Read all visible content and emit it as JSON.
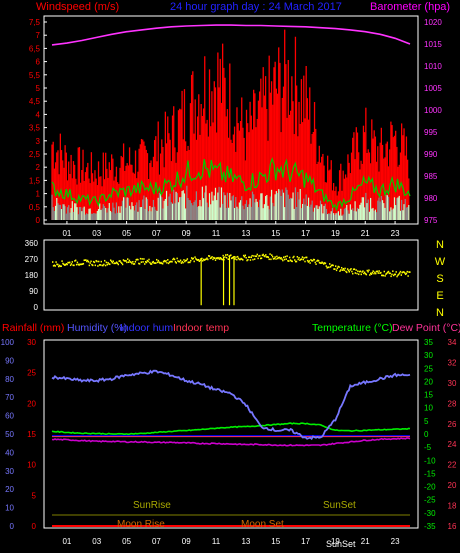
{
  "colors": {
    "bg": "#000000",
    "frame": "#ffffff",
    "grid": "#333333",
    "wind": "#ff0000",
    "gust": "#00cc00",
    "light": "#ccffcc",
    "baro": "#ff33ff",
    "dir": "#ffff00",
    "rain": "#ff0000",
    "hum": "#7777ff",
    "inhum": "#0000ff",
    "intemp": "#ff3355",
    "temp": "#00ee00",
    "dew": "#cc00cc",
    "sunline": "#666600",
    "sunText": "#aaaa00",
    "moonText": "#cc6600",
    "titleBlue": "#2222ff",
    "windTitle": "#ff0000",
    "baroTitle": "#ff00ff",
    "tempTitle": "#00ff00",
    "dewTitle": "#ff3399"
  },
  "top": {
    "title_left": "Windspeed (m/s)",
    "title_center": "24 hour graph day : 24 March 2017",
    "title_right": "Barometer (hpa)"
  },
  "bottom": {
    "title_rain": "Rainfall (mm)",
    "title_hum": "Humidity (%)",
    "title_inhum": "Indoor hum",
    "title_intemp": "Indoor temp",
    "title_temp": "Temperature (°C)",
    "title_dew": "Dew Point (°C)",
    "sunrise": "SunRise",
    "sunset": "SunSet",
    "moonrise": "Moon Rise",
    "moonset": "Moon Set",
    "sunset_axis": "SunSet"
  },
  "chart_data": [
    {
      "type": "line",
      "title": "24 hour graph day : 24 March 2017",
      "ylabel": "Windspeed (m/s)",
      "ylabel_right": "Barometer (hpa)",
      "ylim": [
        0,
        7.5
      ],
      "ylim_right": [
        975,
        1020
      ],
      "y_ticks": [
        "0",
        "0,5",
        "1",
        "1,5",
        "2",
        "2,5",
        "3",
        "3,5",
        "4",
        "4,5",
        "5",
        "5,5",
        "6",
        "6,5",
        "7",
        "7,5"
      ],
      "y_ticks_right": [
        "975",
        "980",
        "985",
        "990",
        "995",
        "1000",
        "1005",
        "1010",
        "1015",
        "1020"
      ],
      "x_ticks": [
        "01",
        "03",
        "05",
        "07",
        "09",
        "11",
        "13",
        "15",
        "17",
        "19",
        "21",
        "23"
      ],
      "x": [
        0,
        1,
        2,
        3,
        4,
        5,
        6,
        7,
        8,
        9,
        10,
        11,
        12,
        13,
        14,
        15,
        16,
        17,
        18,
        19,
        20,
        21,
        22,
        23,
        24
      ],
      "series": [
        {
          "key": "wind",
          "values": [
            3.2,
            2.5,
            2.2,
            2.0,
            2.3,
            2.4,
            2.5,
            3.0,
            3.5,
            4.5,
            5.5,
            6.0,
            5.0,
            3.5,
            4.5,
            5.5,
            6.0,
            5.0,
            3.0,
            1.5,
            2.5,
            3.5,
            2.8,
            3.5,
            2.5
          ]
        },
        {
          "key": "gust",
          "values": [
            1.2,
            1.0,
            0.8,
            0.7,
            1.0,
            1.1,
            1.2,
            1.2,
            1.4,
            1.8,
            2.0,
            1.8,
            1.6,
            1.4,
            1.6,
            2.0,
            1.8,
            1.6,
            1.0,
            0.5,
            0.9,
            1.4,
            1.1,
            1.4,
            1.0
          ]
        },
        {
          "key": "light",
          "values": [
            0.8,
            0.6,
            0.5,
            0.5,
            0.6,
            0.7,
            0.8,
            0.8,
            0.9,
            1.0,
            1.1,
            1.0,
            0.9,
            0.8,
            0.9,
            1.0,
            1.0,
            0.9,
            0.6,
            0.3,
            0.5,
            0.8,
            0.7,
            0.8,
            0.6
          ]
        },
        {
          "key": "baro",
          "axis": "right",
          "values": [
            1014.8,
            1015.2,
            1015.8,
            1016.5,
            1017.2,
            1017.8,
            1018.2,
            1018.6,
            1018.9,
            1019.1,
            1019.2,
            1019.3,
            1019.3,
            1019.2,
            1019.2,
            1019.1,
            1019.0,
            1018.9,
            1018.7,
            1018.5,
            1018.2,
            1017.8,
            1017.2,
            1016.3,
            1015.0
          ]
        }
      ]
    },
    {
      "type": "scatter",
      "title": "",
      "ylim": [
        0,
        360
      ],
      "y_ticks": [
        "0",
        "90",
        "180",
        "270",
        "360"
      ],
      "y_ticks_right": [
        "N",
        "W",
        "S",
        "E",
        "N"
      ],
      "x": [
        0,
        1,
        2,
        3,
        4,
        5,
        6,
        7,
        8,
        9,
        10,
        11,
        12,
        13,
        14,
        15,
        16,
        17,
        18,
        19,
        20,
        21,
        22,
        23,
        24
      ],
      "series": [
        {
          "key": "dir",
          "values": [
            245,
            250,
            255,
            250,
            255,
            260,
            262,
            258,
            262,
            265,
            275,
            280,
            285,
            280,
            290,
            285,
            275,
            270,
            250,
            225,
            205,
            200,
            195,
            190,
            190
          ]
        }
      ]
    },
    {
      "type": "line",
      "title": "",
      "x_ticks": [
        "01",
        "03",
        "05",
        "07",
        "09",
        "11",
        "13",
        "15",
        "17",
        "19",
        "21",
        "23"
      ],
      "y_ticks_hum": [
        "0",
        "10",
        "20",
        "30",
        "40",
        "50",
        "60",
        "70",
        "80",
        "90",
        "100"
      ],
      "y_ticks_rain": [
        "0",
        "5",
        "10",
        "15",
        "20",
        "25",
        "30"
      ],
      "y_ticks_temp": [
        "-35",
        "-30",
        "-25",
        "-20",
        "-15",
        "-10",
        "-5",
        "0",
        "5",
        "10",
        "15",
        "20",
        "25",
        "30",
        "35"
      ],
      "y_ticks_intemp": [
        "16",
        "18",
        "20",
        "22",
        "24",
        "26",
        "28",
        "30",
        "32",
        "34"
      ],
      "ylim_hum": [
        0,
        100
      ],
      "ylim_temp": [
        -35,
        35
      ],
      "x": [
        0,
        1,
        2,
        3,
        4,
        5,
        6,
        7,
        8,
        9,
        10,
        11,
        12,
        13,
        14,
        15,
        16,
        17,
        18,
        19,
        20,
        21,
        22,
        23,
        24
      ],
      "series": [
        {
          "key": "hum",
          "values": [
            81,
            80,
            79,
            79,
            80,
            82,
            83,
            84,
            82,
            79,
            77,
            74,
            72,
            66,
            54,
            52,
            52,
            48,
            48,
            58,
            76,
            78,
            80,
            82,
            82
          ]
        },
        {
          "key": "inhum",
          "values": [
            49,
            49,
            49,
            49,
            49,
            49,
            49,
            49,
            49,
            49,
            49,
            49,
            49,
            49,
            49,
            49,
            49,
            49,
            49,
            49,
            49,
            49,
            49,
            49,
            49
          ]
        },
        {
          "key": "temp",
          "values": [
            1,
            0.6,
            0.3,
            0.2,
            0,
            0,
            0.2,
            0.6,
            1,
            1.3,
            1.7,
            2.2,
            2.6,
            2.8,
            3.2,
            3.6,
            4,
            4,
            3.4,
            1.4,
            1.2,
            1.4,
            1.6,
            1.8,
            2
          ]
        },
        {
          "key": "dew",
          "values": [
            -2,
            -2.2,
            -2.5,
            -2.8,
            -2.8,
            -3,
            -3,
            -3.2,
            -3.2,
            -3.4,
            -3.6,
            -3.6,
            -3.8,
            -4,
            -4,
            -4.2,
            -4.3,
            -4.3,
            -4.3,
            -3.6,
            -3,
            -2.4,
            -2,
            -1.8,
            -1.6
          ]
        },
        {
          "key": "intemp",
          "values": [
            -1.0,
            -1.0,
            -1.0,
            -1.0,
            -1.0,
            -1.0,
            -1.0,
            -1.0,
            -1.0,
            -1.0,
            -1.0,
            -1.0,
            -1.0,
            -1.0,
            -1.0,
            -1.0,
            -1.0,
            -1.0,
            -1.0,
            -1.0,
            -1.0,
            -1.0,
            -1.0,
            -1.0,
            -1.0
          ]
        },
        {
          "key": "rain",
          "values": [
            0,
            0,
            0,
            0,
            0,
            0,
            0,
            0,
            0,
            0,
            0,
            0,
            0,
            0,
            0,
            0,
            0,
            0,
            0,
            0,
            0,
            0,
            0,
            0,
            0
          ]
        },
        {
          "key": "sunline",
          "values": [
            6,
            6,
            6,
            6,
            6,
            6,
            6,
            6,
            6,
            6,
            6,
            6,
            6,
            6,
            6,
            6,
            6,
            6,
            6,
            6,
            6,
            6,
            6,
            6,
            6
          ]
        }
      ]
    }
  ]
}
